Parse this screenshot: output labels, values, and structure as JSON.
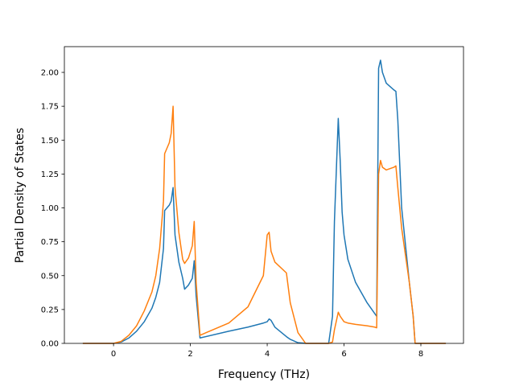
{
  "chart_data": {
    "type": "line",
    "x_label": "Frequency (THz)",
    "y_label": "Partial Density of States",
    "x": [
      -0.8,
      0,
      0.2,
      0.4,
      0.6,
      0.8,
      1.0,
      1.1,
      1.2,
      1.3,
      1.33,
      1.45,
      1.5,
      1.55,
      1.6,
      1.7,
      1.8,
      1.85,
      1.95,
      2.05,
      2.1,
      2.15,
      2.25,
      3.0,
      3.5,
      3.9,
      4.0,
      4.05,
      4.1,
      4.2,
      4.5,
      4.6,
      4.8,
      5.0,
      5.6,
      5.7,
      5.75,
      5.85,
      5.9,
      5.95,
      6.0,
      6.1,
      6.3,
      6.6,
      6.8,
      6.85,
      6.9,
      6.95,
      7.0,
      7.1,
      7.3,
      7.35,
      7.4,
      7.5,
      7.7,
      7.8,
      7.85,
      8.65
    ],
    "series": [
      {
        "color": "#1f77b4",
        "values": [
          0,
          0,
          0.01,
          0.04,
          0.09,
          0.16,
          0.26,
          0.34,
          0.45,
          0.7,
          0.98,
          1.02,
          1.05,
          1.15,
          0.8,
          0.6,
          0.48,
          0.4,
          0.43,
          0.48,
          0.61,
          0.35,
          0.04,
          0.09,
          0.12,
          0.15,
          0.16,
          0.18,
          0.17,
          0.12,
          0.05,
          0.03,
          0.005,
          0,
          0,
          0.2,
          0.9,
          1.66,
          1.35,
          0.97,
          0.8,
          0.62,
          0.45,
          0.3,
          0.22,
          0.2,
          2.03,
          2.09,
          2.0,
          1.92,
          1.87,
          1.86,
          1.65,
          1.0,
          0.45,
          0.2,
          0,
          0
        ]
      },
      {
        "color": "#ff7f0e",
        "values": [
          0,
          0,
          0.015,
          0.06,
          0.13,
          0.24,
          0.38,
          0.5,
          0.7,
          1.05,
          1.4,
          1.48,
          1.55,
          1.75,
          1.15,
          0.82,
          0.62,
          0.59,
          0.63,
          0.72,
          0.9,
          0.45,
          0.06,
          0.15,
          0.27,
          0.5,
          0.8,
          0.82,
          0.68,
          0.6,
          0.52,
          0.3,
          0.08,
          0,
          0,
          0.01,
          0.1,
          0.23,
          0.2,
          0.18,
          0.16,
          0.15,
          0.14,
          0.13,
          0.12,
          0.115,
          1.25,
          1.35,
          1.3,
          1.28,
          1.3,
          1.31,
          1.15,
          0.85,
          0.45,
          0.2,
          0,
          0
        ]
      }
    ],
    "xlim": [
      -1.28,
      9.11
    ],
    "xticks": [
      0,
      2,
      4,
      6,
      8
    ],
    "ylim": [
      0,
      2.19
    ],
    "yticks": [
      {
        "value": 0,
        "label": "0.00"
      },
      {
        "value": 0.25,
        "label": "0.25"
      },
      {
        "value": 0.5,
        "label": "0.50"
      },
      {
        "value": 0.75,
        "label": "0.75"
      },
      {
        "value": 1,
        "label": "1.00"
      },
      {
        "value": 1.25,
        "label": "1.25"
      },
      {
        "value": 1.5,
        "label": "1.50"
      },
      {
        "value": 1.75,
        "label": "1.75"
      },
      {
        "value": 2,
        "label": "2.00"
      }
    ],
    "grid": false
  }
}
